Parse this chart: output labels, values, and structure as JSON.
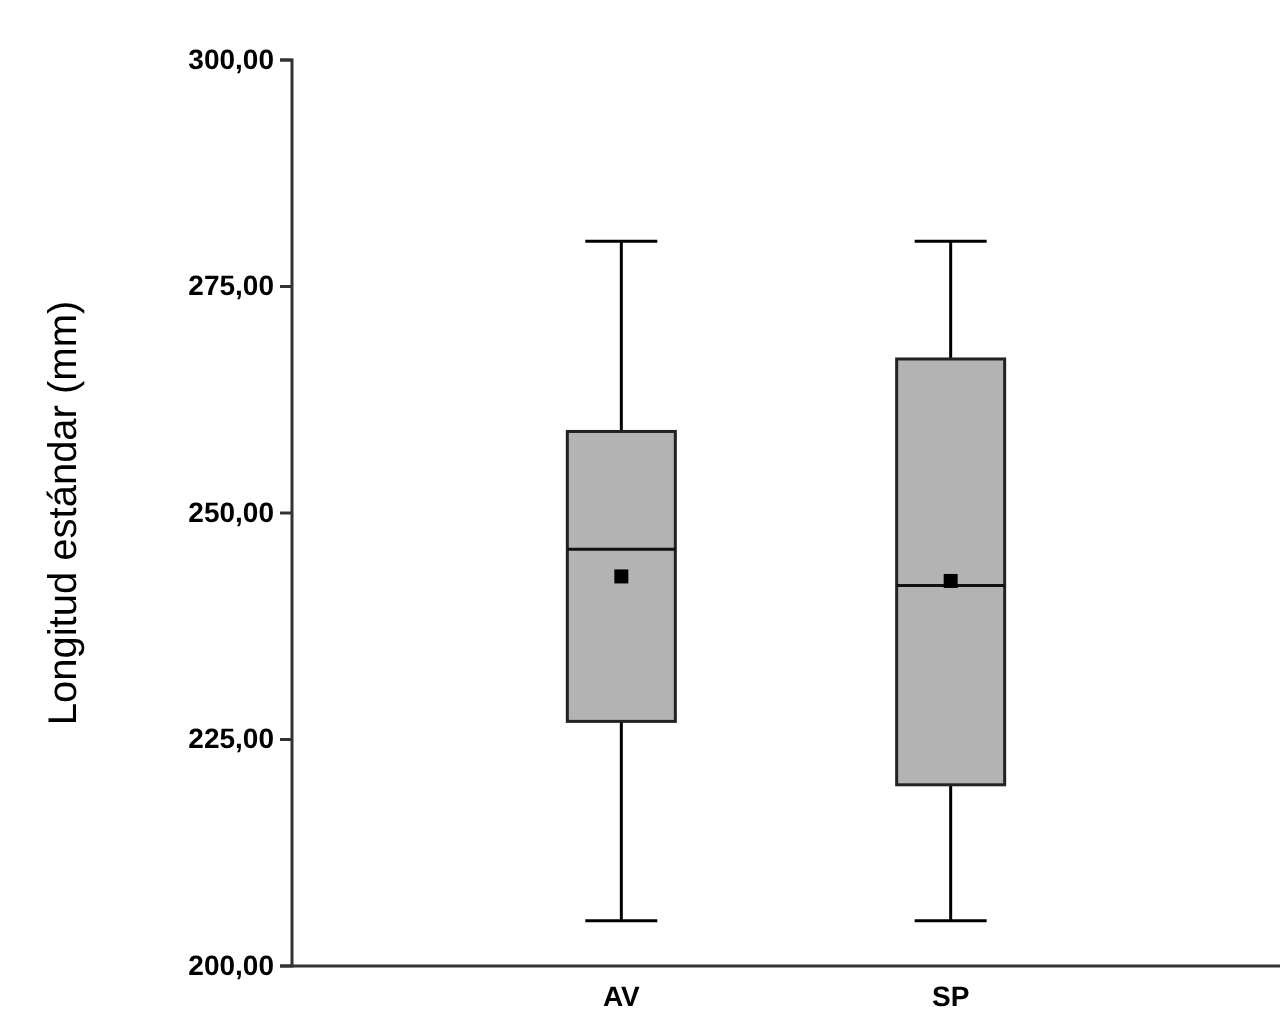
{
  "chart_data": {
    "type": "box",
    "ylabel": "Longitud estándar (mm)",
    "categories": [
      "AV",
      "SP"
    ],
    "series": [
      {
        "color": "#b3b3b3",
        "boxes": [
          {
            "low": 205,
            "q1": 227,
            "median": 246,
            "q3": 259,
            "high": 280,
            "mean": 243
          },
          {
            "low": 205,
            "q1": 220,
            "median": 242,
            "q3": 267,
            "high": 280,
            "mean": 242.5
          }
        ]
      }
    ],
    "ylim": [
      200,
      300
    ],
    "yticks": [
      {
        "value": 200,
        "label": "200,00"
      },
      {
        "value": 225,
        "label": "225,00"
      },
      {
        "value": 250,
        "label": "250,00"
      },
      {
        "value": 275,
        "label": "275,00"
      },
      {
        "value": 300,
        "label": "300,00"
      }
    ],
    "grid": false
  }
}
